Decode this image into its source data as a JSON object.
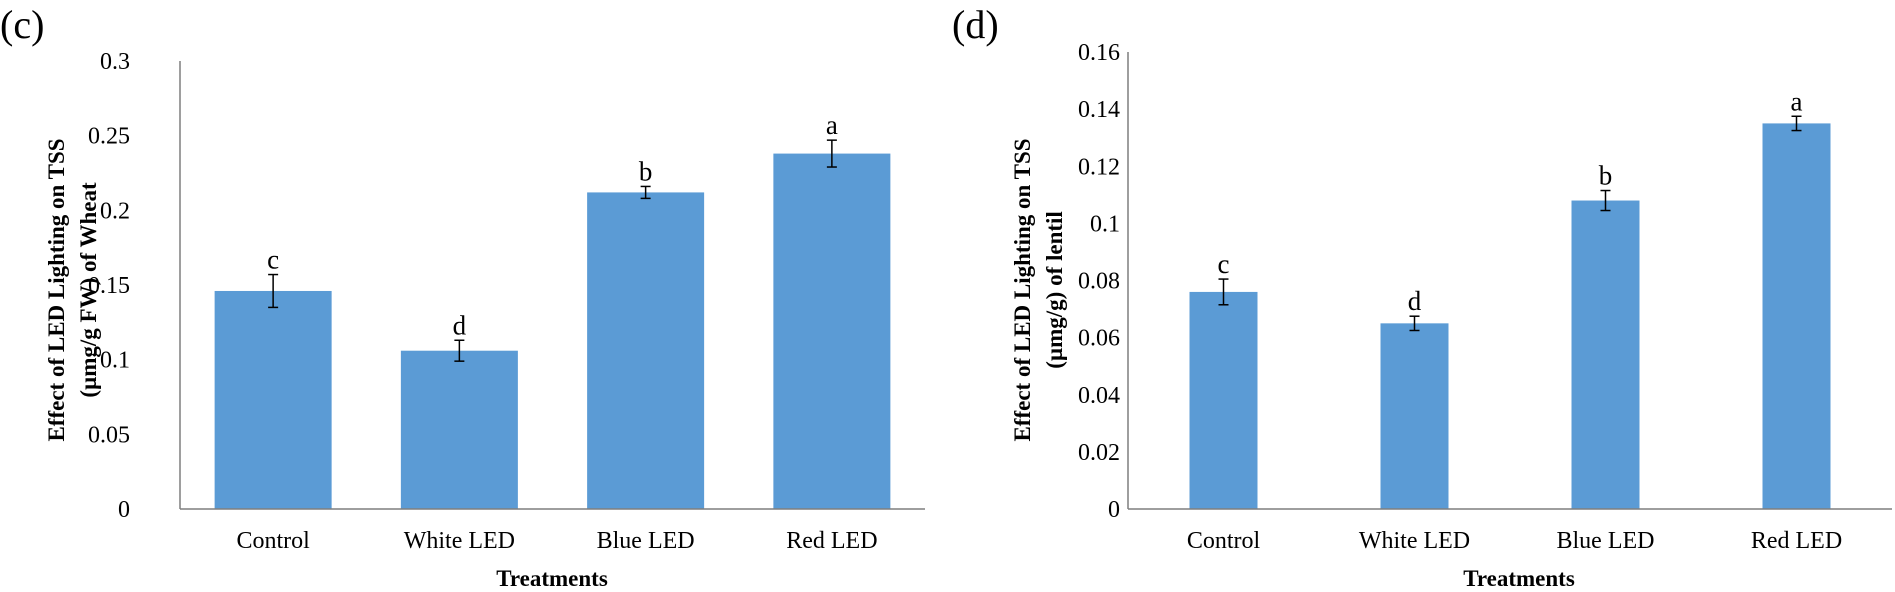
{
  "chart_data": [
    {
      "type": "bar",
      "panel_label": "(c)",
      "title": "",
      "categories": [
        "Control",
        "White LED",
        "Blue LED",
        "Red LED"
      ],
      "values": [
        0.146,
        0.106,
        0.212,
        0.238
      ],
      "errors": [
        0.011,
        0.007,
        0.004,
        0.009
      ],
      "significance": [
        "c",
        "d",
        "b",
        "a"
      ],
      "xlabel": "Treatments",
      "ylabel_line1": "Effect of LED Lighting on TSS",
      "ylabel_line2": "(µmg/g FW) of Wheat",
      "ylim": [
        0,
        0.3
      ],
      "yticks": [
        0,
        0.05,
        0.1,
        0.15,
        0.2,
        0.25,
        0.3
      ],
      "ytick_labels": [
        "0",
        "0.05",
        "0.1",
        "0.15",
        "0.2",
        "0.25",
        "0.3"
      ],
      "bar_color": "#5b9bd5"
    },
    {
      "type": "bar",
      "panel_label": "(d)",
      "title": "",
      "categories": [
        "Control",
        "White LED",
        "Blue LED",
        "Red LED"
      ],
      "values": [
        0.076,
        0.065,
        0.108,
        0.135
      ],
      "errors": [
        0.0045,
        0.0025,
        0.0035,
        0.0025
      ],
      "significance": [
        "c",
        "d",
        "b",
        "a"
      ],
      "xlabel": "Treatments",
      "ylabel_line1": "Effect of LED Lighting on TSS",
      "ylabel_line2": "(µmg/g) of lentil",
      "ylim": [
        0,
        0.16
      ],
      "yticks": [
        0,
        0.02,
        0.04,
        0.06,
        0.08,
        0.1,
        0.12,
        0.14,
        0.16
      ],
      "ytick_labels": [
        "0",
        "0.02",
        "0.04",
        "0.06",
        "0.08",
        "0.1",
        "0.12",
        "0.14",
        "0.16"
      ],
      "bar_color": "#5b9bd5"
    }
  ]
}
